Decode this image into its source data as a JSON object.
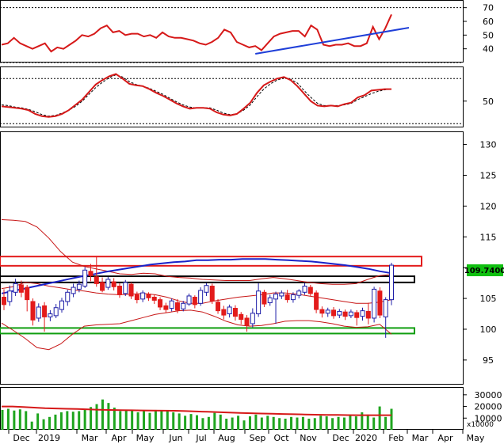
{
  "chart_data": [
    {
      "type": "line",
      "series": [
        {
          "values": [
            43,
            44,
            48,
            44,
            42,
            40,
            42,
            44,
            38,
            41,
            40,
            43,
            46,
            50,
            49,
            51,
            55,
            57,
            52,
            53,
            50,
            51,
            51,
            49,
            50,
            48,
            52,
            49,
            48,
            48,
            47,
            46,
            44,
            43,
            45,
            48,
            54,
            52,
            45,
            43,
            41,
            42,
            39,
            44,
            49,
            51,
            52,
            53,
            53,
            49,
            57,
            54,
            43,
            42,
            43,
            43,
            44,
            42,
            42,
            44,
            56,
            47,
            55,
            65
          ]
        }
      ],
      "trend": {
        "from": [
          41,
          53
        ],
        "to": [
          64,
          54
        ]
      },
      "ylim": [
        30,
        75
      ],
      "dotted_levels": [
        30,
        70
      ],
      "y_ticks": [
        "70",
        "60",
        "50",
        "40"
      ]
    },
    {
      "type": "line",
      "series": [
        {
          "values": [
            43,
            42,
            41,
            40,
            38,
            33,
            30,
            29,
            30,
            33,
            38,
            45,
            52,
            62,
            72,
            78,
            83,
            86,
            80,
            73,
            71,
            70,
            66,
            61,
            57,
            52,
            47,
            43,
            40,
            41,
            41,
            40,
            35,
            32,
            31,
            33,
            40,
            48,
            61,
            71,
            76,
            80,
            82,
            78,
            70,
            60,
            50,
            44,
            43,
            44,
            43,
            46,
            48,
            55,
            58,
            64,
            65,
            66,
            66
          ]
        },
        {
          "values": [
            45,
            44,
            42,
            41,
            39,
            36,
            32,
            30,
            31,
            34,
            38,
            43,
            50,
            59,
            68,
            75,
            81,
            85,
            82,
            76,
            72,
            70,
            67,
            63,
            59,
            54,
            49,
            45,
            42,
            41,
            41,
            41,
            38,
            34,
            32,
            33,
            38,
            45,
            56,
            66,
            73,
            78,
            81,
            79,
            74,
            64,
            55,
            47,
            44,
            44,
            44,
            45,
            47,
            52,
            56,
            60,
            63,
            65,
            66
          ]
        }
      ],
      "ylim": [
        15,
        95
      ],
      "dotted_levels": [
        20,
        80
      ],
      "y_ticks": [
        "50"
      ]
    },
    {
      "type": "candlestick",
      "ylim": [
        91,
        132
      ],
      "y_ticks": [
        "130",
        "125",
        "120",
        "115",
        "110",
        "105",
        "100",
        "95"
      ],
      "last_price": "109.7400",
      "candles": [
        {
          "o": 105.2,
          "c": 104.0,
          "h": 106.5,
          "l": 103.1
        },
        {
          "o": 104.5,
          "c": 106.2,
          "h": 107.1,
          "l": 103.8
        },
        {
          "o": 106.0,
          "c": 107.4,
          "h": 108.2,
          "l": 105.4
        },
        {
          "o": 107.2,
          "c": 106.0,
          "h": 107.9,
          "l": 105.2
        },
        {
          "o": 106.8,
          "c": 104.8,
          "h": 107.2,
          "l": 102.9
        },
        {
          "o": 104.5,
          "c": 101.5,
          "h": 105.0,
          "l": 100.6
        },
        {
          "o": 101.8,
          "c": 103.6,
          "h": 104.2,
          "l": 101.2
        },
        {
          "o": 103.8,
          "c": 102.0,
          "h": 104.4,
          "l": 99.6
        },
        {
          "o": 102.0,
          "c": 102.5,
          "h": 103.1,
          "l": 101.3
        },
        {
          "o": 102.2,
          "c": 103.5,
          "h": 104.1,
          "l": 101.8
        },
        {
          "o": 103.2,
          "c": 104.6,
          "h": 105.1,
          "l": 102.7
        },
        {
          "o": 104.5,
          "c": 106.0,
          "h": 106.4,
          "l": 103.8
        },
        {
          "o": 105.8,
          "c": 106.8,
          "h": 107.4,
          "l": 105.2
        },
        {
          "o": 106.5,
          "c": 107.3,
          "h": 107.9,
          "l": 106.0
        },
        {
          "o": 107.0,
          "c": 109.6,
          "h": 110.1,
          "l": 106.7
        },
        {
          "o": 109.4,
          "c": 108.7,
          "h": 110.6,
          "l": 107.8
        },
        {
          "o": 108.5,
          "c": 107.4,
          "h": 111.9,
          "l": 106.9
        },
        {
          "o": 107.6,
          "c": 106.3,
          "h": 108.4,
          "l": 106.0
        },
        {
          "o": 106.8,
          "c": 108.1,
          "h": 108.5,
          "l": 106.4
        },
        {
          "o": 107.7,
          "c": 106.9,
          "h": 108.3,
          "l": 106.3
        },
        {
          "o": 107.0,
          "c": 105.6,
          "h": 107.5,
          "l": 105.1
        },
        {
          "o": 105.8,
          "c": 107.6,
          "h": 108.0,
          "l": 105.4
        },
        {
          "o": 107.3,
          "c": 105.4,
          "h": 107.6,
          "l": 104.9
        },
        {
          "o": 105.6,
          "c": 104.8,
          "h": 106.1,
          "l": 104.2
        },
        {
          "o": 104.9,
          "c": 105.9,
          "h": 106.3,
          "l": 104.4
        },
        {
          "o": 105.7,
          "c": 105.1,
          "h": 106.0,
          "l": 104.6
        },
        {
          "o": 105.2,
          "c": 104.7,
          "h": 105.6,
          "l": 104.1
        },
        {
          "o": 104.8,
          "c": 103.6,
          "h": 105.2,
          "l": 103.1
        },
        {
          "o": 103.8,
          "c": 103.2,
          "h": 104.3,
          "l": 102.7
        },
        {
          "o": 103.4,
          "c": 104.6,
          "h": 105.0,
          "l": 102.9
        },
        {
          "o": 104.3,
          "c": 103.1,
          "h": 104.9,
          "l": 102.6
        },
        {
          "o": 103.3,
          "c": 104.2,
          "h": 104.6,
          "l": 102.9
        },
        {
          "o": 104.1,
          "c": 105.4,
          "h": 105.8,
          "l": 103.8
        },
        {
          "o": 105.2,
          "c": 104.0,
          "h": 105.5,
          "l": 103.4
        },
        {
          "o": 104.2,
          "c": 106.3,
          "h": 106.8,
          "l": 103.8
        },
        {
          "o": 106.0,
          "c": 107.1,
          "h": 107.5,
          "l": 105.4
        },
        {
          "o": 107.0,
          "c": 104.6,
          "h": 107.4,
          "l": 104.1
        },
        {
          "o": 104.4,
          "c": 103.0,
          "h": 104.9,
          "l": 102.5
        },
        {
          "o": 103.2,
          "c": 102.3,
          "h": 103.8,
          "l": 101.6
        },
        {
          "o": 102.5,
          "c": 103.6,
          "h": 104.0,
          "l": 101.9
        },
        {
          "o": 103.4,
          "c": 102.1,
          "h": 103.9,
          "l": 101.4
        },
        {
          "o": 102.4,
          "c": 101.6,
          "h": 102.8,
          "l": 100.8
        },
        {
          "o": 101.8,
          "c": 100.6,
          "h": 102.3,
          "l": 99.6
        },
        {
          "o": 100.9,
          "c": 102.6,
          "h": 103.4,
          "l": 100.3
        },
        {
          "o": 102.5,
          "c": 106.2,
          "h": 107.5,
          "l": 102.0
        },
        {
          "o": 106.0,
          "c": 104.1,
          "h": 106.4,
          "l": 103.6
        },
        {
          "o": 104.3,
          "c": 105.1,
          "h": 105.6,
          "l": 103.8
        },
        {
          "o": 104.9,
          "c": 105.7,
          "h": 106.1,
          "l": 100.9
        },
        {
          "o": 105.4,
          "c": 105.9,
          "h": 106.3,
          "l": 104.9
        },
        {
          "o": 105.6,
          "c": 104.8,
          "h": 106.4,
          "l": 104.3
        },
        {
          "o": 104.8,
          "c": 105.6,
          "h": 106.0,
          "l": 104.3
        },
        {
          "o": 105.5,
          "c": 106.2,
          "h": 106.5,
          "l": 105.0
        },
        {
          "o": 106.0,
          "c": 107.0,
          "h": 107.5,
          "l": 105.6
        },
        {
          "o": 106.8,
          "c": 105.8,
          "h": 107.2,
          "l": 105.4
        },
        {
          "o": 105.9,
          "c": 103.2,
          "h": 106.3,
          "l": 102.6
        },
        {
          "o": 103.2,
          "c": 102.6,
          "h": 103.7,
          "l": 101.9
        },
        {
          "o": 102.6,
          "c": 103.1,
          "h": 103.5,
          "l": 102.0
        },
        {
          "o": 103.1,
          "c": 102.2,
          "h": 103.6,
          "l": 101.7
        },
        {
          "o": 102.3,
          "c": 102.9,
          "h": 103.3,
          "l": 101.8
        },
        {
          "o": 102.8,
          "c": 102.1,
          "h": 103.2,
          "l": 101.5
        },
        {
          "o": 102.2,
          "c": 102.8,
          "h": 103.2,
          "l": 101.8
        },
        {
          "o": 102.7,
          "c": 101.9,
          "h": 103.1,
          "l": 100.6
        },
        {
          "o": 102.1,
          "c": 103.0,
          "h": 103.5,
          "l": 101.4
        },
        {
          "o": 102.9,
          "c": 101.8,
          "h": 104.3,
          "l": 100.8
        },
        {
          "o": 101.8,
          "c": 106.5,
          "h": 106.9,
          "l": 101.1
        },
        {
          "o": 106.2,
          "c": 102.3,
          "h": 106.8,
          "l": 101.8
        },
        {
          "o": 102.0,
          "c": 104.8,
          "h": 105.2,
          "l": 98.6
        },
        {
          "o": 104.8,
          "c": 110.4,
          "h": 110.8,
          "l": 103.9
        }
      ],
      "ma": [
        105.8,
        106.2,
        106.6,
        107.0,
        107.4,
        107.8,
        108.2,
        108.6,
        108.9,
        109.3,
        109.6,
        109.9,
        110.2,
        110.5,
        110.7,
        110.9,
        111.0,
        111.2,
        111.2,
        111.3,
        111.3,
        111.4,
        111.4,
        111.4,
        111.3,
        111.2,
        111.1,
        111.0,
        110.8,
        110.6,
        110.4,
        110.1,
        109.8,
        109.4,
        109.1
      ],
      "bollinger_upper": [
        117.8,
        117.7,
        117.5,
        116.6,
        114.8,
        112.6,
        110.9,
        110.2,
        109.8,
        109.4,
        109.0,
        108.9,
        109.1,
        109.0,
        108.6,
        108.4,
        108.3,
        108.1,
        108.0,
        107.9,
        107.9,
        107.9,
        108.2,
        108.4,
        108.2,
        107.9,
        107.6,
        107.4,
        107.3,
        107.3,
        107.4,
        108.1,
        108.7,
        108.9
      ],
      "bollinger_lower": [
        101.0,
        99.8,
        98.5,
        97.0,
        96.7,
        97.6,
        99.2,
        100.5,
        100.7,
        100.8,
        100.9,
        101.4,
        101.9,
        102.4,
        102.7,
        103.0,
        103.1,
        102.8,
        102.1,
        101.3,
        100.7,
        100.5,
        100.6,
        100.9,
        101.3,
        101.4,
        101.4,
        101.2,
        100.9,
        100.5,
        100.3,
        100.4,
        100.8,
        99.2
      ],
      "bollinger_mid": [
        106.6,
        106.9,
        107.6,
        107.4,
        107.0,
        106.7,
        106.4,
        106.2,
        105.9,
        105.7,
        105.6,
        105.7,
        105.8,
        105.6,
        105.2,
        104.6,
        104.2,
        104.2,
        104.6,
        104.9,
        105.2,
        105.4,
        105.6,
        105.9,
        105.9,
        105.7,
        105.4,
        105.1,
        104.8,
        104.5,
        104.2,
        104.2,
        104.4,
        104.8
      ],
      "zones": [
        {
          "color": "#e31b1b",
          "low": 110.3,
          "high": 111.8
        },
        {
          "color": "#000000",
          "low": 107.6,
          "high": 108.6
        },
        {
          "color": "#0f9e0f",
          "low": 99.3,
          "high": 100.2
        }
      ]
    },
    {
      "type": "bar",
      "y_ticks": [
        "30000",
        "20000",
        "10000"
      ],
      "unit_label": "x10000",
      "ylim": [
        0,
        36000
      ],
      "values": [
        17000,
        18000,
        16500,
        17500,
        16000,
        7000,
        14000,
        9000,
        11000,
        13000,
        15000,
        16000,
        15500,
        16000,
        17000,
        19500,
        22000,
        26000,
        23000,
        19000,
        16000,
        17000,
        16500,
        15000,
        16000,
        14500,
        17000,
        16000,
        16500,
        15000,
        14000,
        12000,
        13500,
        12500,
        10000,
        11000,
        14500,
        13000,
        9500,
        10500,
        12000,
        8000,
        11500,
        13000,
        10500,
        12000,
        11000,
        10000,
        9500,
        11000,
        10500,
        11000,
        9500,
        10000,
        12000,
        11500,
        10000,
        11000,
        10500,
        12000,
        11500,
        15000,
        13000,
        10500,
        20000,
        11000,
        18000
      ],
      "ma": [
        20000,
        20000,
        19500,
        19000,
        18500,
        18300,
        18000,
        17800,
        17500,
        17200,
        17000,
        16800,
        16700,
        16600,
        16500,
        16400,
        16300,
        16000,
        15700,
        15400,
        15100,
        14800,
        14500,
        14200,
        13900,
        13700,
        13500,
        13300,
        13100,
        12900,
        12800,
        12700,
        12600,
        12500,
        12500,
        12500,
        12500
      ]
    }
  ],
  "x_axis": {
    "months": [
      "Dec",
      "2019",
      "Mar",
      "Apr",
      "May",
      "Jun",
      "Jul",
      "Aug",
      "Sep",
      "Oct",
      "Nov",
      "Dec",
      "2020",
      "Feb",
      "Mar",
      "Apr",
      "May"
    ]
  },
  "colors": {
    "up": "#1f1fa8",
    "down": "#e31b1b",
    "rsi": "#d61919",
    "trend": "#1f3fd8",
    "ma_long": "#1a22c8",
    "band": "#c71515",
    "volume": "#1fa51f",
    "volume_ma": "#d61919"
  }
}
